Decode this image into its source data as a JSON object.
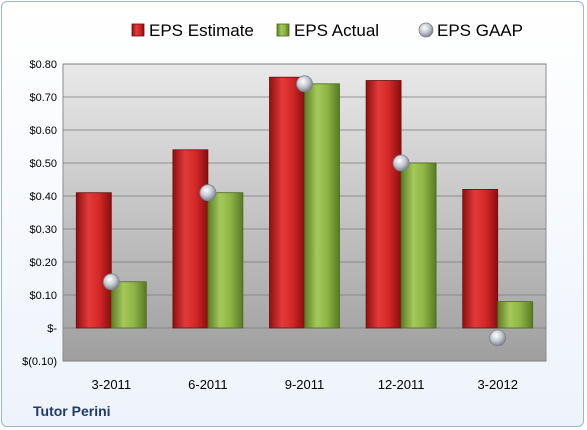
{
  "company": "Tutor Perini",
  "colors": {
    "estimate": "#cc2222",
    "actual": "#8db441",
    "gaap": "#b9bec8"
  },
  "chart_data": {
    "type": "bar",
    "categories": [
      "3-2011",
      "6-2011",
      "9-2011",
      "12-2011",
      "3-2012"
    ],
    "series": [
      {
        "name": "EPS Estimate",
        "values": [
          0.41,
          0.54,
          0.76,
          0.75,
          0.42
        ]
      },
      {
        "name": "EPS Actual",
        "values": [
          0.14,
          0.41,
          0.74,
          0.5,
          0.08
        ]
      },
      {
        "name": "EPS GAAP",
        "values": [
          0.14,
          0.41,
          0.74,
          0.5,
          -0.03
        ],
        "marker": "point"
      }
    ],
    "ylim": [
      -0.1,
      0.8
    ],
    "yticks": [
      0.8,
      0.7,
      0.6,
      0.5,
      0.4,
      0.3,
      0.2,
      0.1,
      0.0,
      -0.1
    ],
    "ytick_labels": [
      "$0.80",
      "$0.70",
      "$0.60",
      "$0.50",
      "$0.40",
      "$0.30",
      "$0.20",
      "$0.10",
      "$-",
      "$(0.10)"
    ],
    "grid": true,
    "legend": "top-center"
  }
}
